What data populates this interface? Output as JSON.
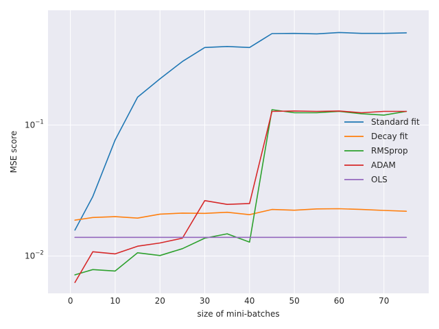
{
  "chart_data": {
    "type": "line",
    "title": "",
    "xlabel": "size of mini-batches",
    "ylabel": "MSE score",
    "yscale": "log",
    "xlim": [
      -5,
      80
    ],
    "ylim": [
      0.0052,
      0.75
    ],
    "xticks": [
      0,
      10,
      20,
      30,
      40,
      50,
      60,
      70
    ],
    "xtick_labels": [
      "0",
      "10",
      "20",
      "30",
      "40",
      "50",
      "60",
      "70"
    ],
    "yticks": [
      0.01,
      0.1
    ],
    "ytick_labels": [
      {
        "base": "10",
        "exp": "−2"
      },
      {
        "base": "10",
        "exp": "−1"
      }
    ],
    "grid": true,
    "background": "#eaeaf2",
    "legend_position": "center-right",
    "x": [
      1,
      5,
      10,
      15,
      20,
      25,
      30,
      35,
      40,
      45,
      50,
      55,
      60,
      65,
      70,
      75
    ],
    "series": [
      {
        "name": "Standard fit",
        "color": "#1f77b4",
        "values": [
          0.0158,
          0.0285,
          0.077,
          0.163,
          0.225,
          0.305,
          0.39,
          0.397,
          0.39,
          0.498,
          0.5,
          0.496,
          0.508,
          0.5,
          0.5,
          0.505
        ]
      },
      {
        "name": "Decay fit",
        "color": "#ff7f0e",
        "values": [
          0.0188,
          0.0197,
          0.02,
          0.0195,
          0.0209,
          0.0213,
          0.0212,
          0.0216,
          0.0207,
          0.0227,
          0.0224,
          0.0229,
          0.023,
          0.0227,
          0.0223,
          0.022
        ]
      },
      {
        "name": "RMSprop",
        "color": "#2ca02c",
        "values": [
          0.0072,
          0.0079,
          0.0077,
          0.0106,
          0.0101,
          0.0114,
          0.0137,
          0.0148,
          0.0128,
          0.131,
          0.124,
          0.124,
          0.127,
          0.122,
          0.119,
          0.127
        ]
      },
      {
        "name": "ADAM",
        "color": "#d62728",
        "values": [
          0.0063,
          0.0108,
          0.0104,
          0.0119,
          0.0126,
          0.0137,
          0.0265,
          0.0248,
          0.0252,
          0.127,
          0.128,
          0.127,
          0.128,
          0.124,
          0.127,
          0.127
        ]
      },
      {
        "name": "OLS",
        "color": "#9467bd",
        "values": [
          0.0139,
          0.0139,
          0.0139,
          0.0139,
          0.0139,
          0.0139,
          0.0139,
          0.0139,
          0.0139,
          0.0139,
          0.0139,
          0.0139,
          0.0139,
          0.0139,
          0.0139,
          0.0139
        ]
      }
    ]
  }
}
